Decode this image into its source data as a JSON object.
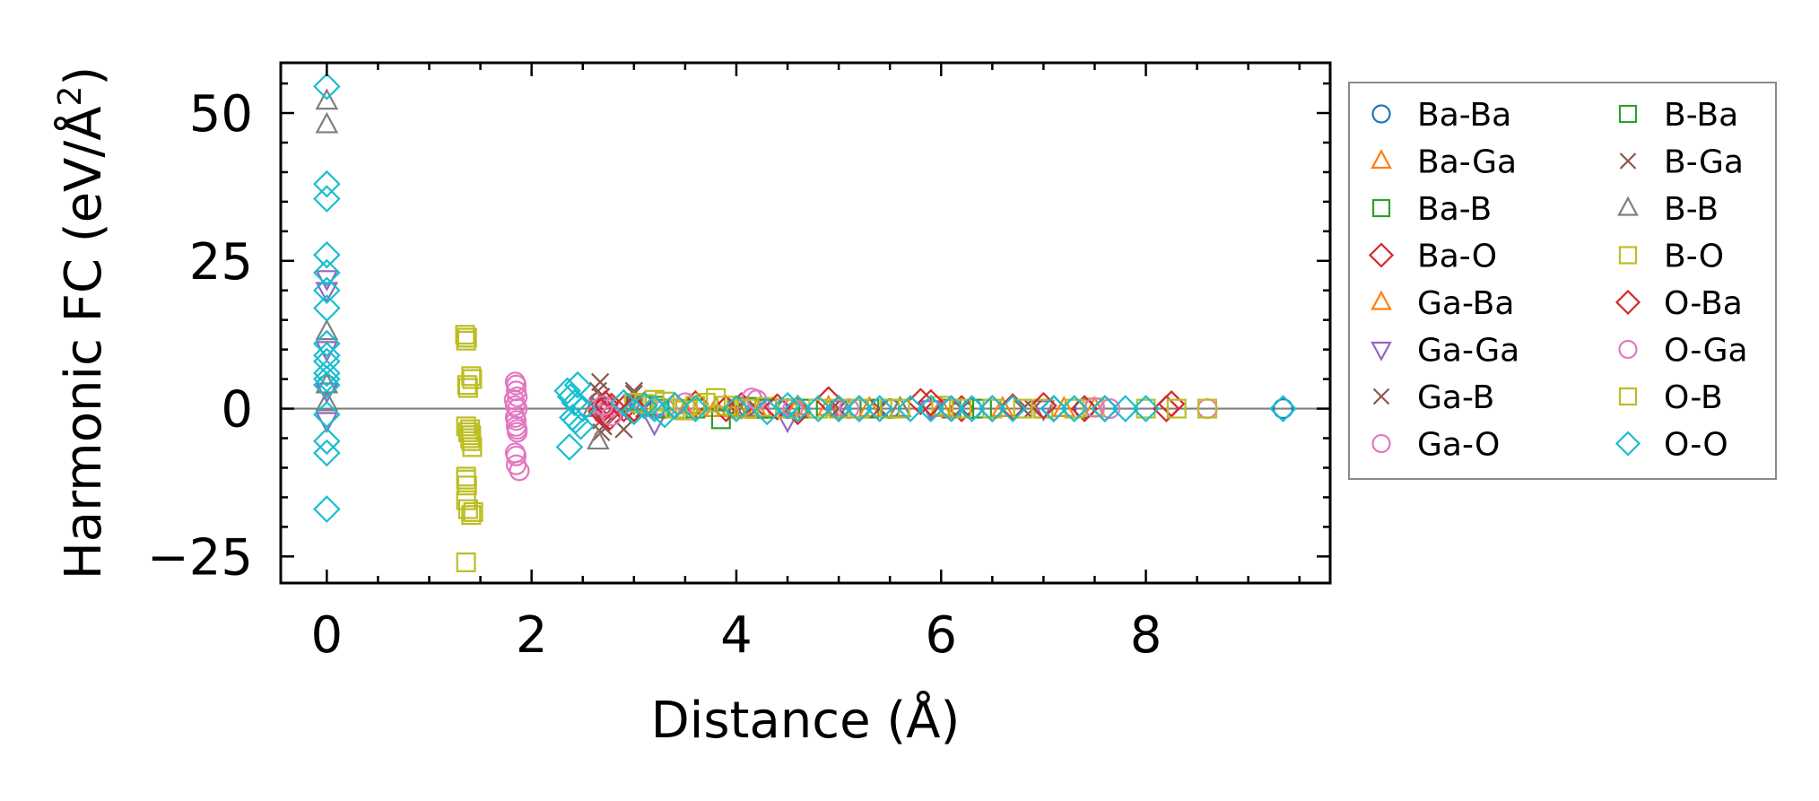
{
  "chart_data": {
    "type": "scatter",
    "xlabel": "Distance (Å)",
    "ylabel": "Harmonic FC (eV/Å²)",
    "ylabel_base": "Harmonic FC (eV/Å",
    "ylabel_sup": "2",
    "ylabel_close": ")",
    "xlim": [
      -0.45,
      9.8
    ],
    "ylim": [
      -29.5,
      58.5
    ],
    "xticks": [
      0,
      2,
      4,
      6,
      8
    ],
    "xtick_labels": [
      "0",
      "2",
      "4",
      "6",
      "8"
    ],
    "yticks": [
      -25,
      0,
      25,
      50
    ],
    "ytick_labels": [
      "−25",
      "0",
      "25",
      "50"
    ],
    "zero_line": 0,
    "grid": false,
    "legend_position": "outside-right",
    "series": [
      {
        "name": "Ba-Ba",
        "marker": "circle",
        "color": "#1f77b4",
        "points": [
          [
            0,
            4
          ],
          [
            4.5,
            0
          ],
          [
            5.5,
            0
          ],
          [
            6.3,
            0
          ],
          [
            7.4,
            0
          ],
          [
            9.34,
            0
          ]
        ]
      },
      {
        "name": "Ba-Ga",
        "marker": "triangle-up",
        "color": "#ff7f0e",
        "points": [
          [
            3.55,
            0.5
          ],
          [
            3.8,
            0
          ],
          [
            4.2,
            -0.3
          ],
          [
            4.9,
            0.2
          ],
          [
            5.6,
            0
          ],
          [
            6.6,
            0
          ],
          [
            7.5,
            0
          ]
        ]
      },
      {
        "name": "Ba-B",
        "marker": "square",
        "color": "#2ca02c",
        "points": [
          [
            3.2,
            0.5
          ],
          [
            3.6,
            0
          ],
          [
            4.1,
            0.3
          ],
          [
            4.7,
            0
          ],
          [
            5.3,
            0
          ],
          [
            6.1,
            0
          ],
          [
            7.0,
            0
          ]
        ]
      },
      {
        "name": "Ba-O",
        "marker": "diamond",
        "color": "#d62728",
        "points": [
          [
            2.68,
            0.3
          ],
          [
            2.72,
            -1
          ],
          [
            2.78,
            0.4
          ],
          [
            2.9,
            0
          ],
          [
            3.1,
            0.6
          ],
          [
            3.6,
            0.8
          ],
          [
            4.05,
            0.5
          ],
          [
            4.6,
            -0.5
          ],
          [
            4.9,
            1.5
          ],
          [
            5.2,
            0
          ],
          [
            5.8,
            1.2
          ],
          [
            6.2,
            0
          ],
          [
            6.7,
            0.3
          ],
          [
            7.1,
            0
          ],
          [
            7.6,
            0
          ],
          [
            8.25,
            0.8
          ]
        ]
      },
      {
        "name": "Ga-Ba",
        "marker": "triangle-up",
        "color": "#ff7f0e",
        "points": [
          [
            3.5,
            -0.5
          ],
          [
            4.0,
            0
          ],
          [
            4.6,
            0.3
          ],
          [
            5.3,
            0
          ],
          [
            6.0,
            0
          ],
          [
            7.2,
            0
          ]
        ]
      },
      {
        "name": "Ga-Ga",
        "marker": "triangle-down",
        "color": "#9467bd",
        "points": [
          [
            0,
            22
          ],
          [
            0,
            20
          ],
          [
            0,
            10
          ],
          [
            0,
            3
          ],
          [
            0,
            -2
          ],
          [
            3.2,
            -2.5
          ],
          [
            3.0,
            1
          ],
          [
            4.5,
            -2
          ],
          [
            5.0,
            0
          ],
          [
            5.9,
            0
          ],
          [
            7.0,
            0
          ]
        ]
      },
      {
        "name": "Ga-B",
        "marker": "x",
        "color": "#8c564b",
        "points": [
          [
            2.67,
            4.5
          ],
          [
            2.68,
            2
          ],
          [
            2.68,
            -2
          ],
          [
            2.68,
            -4
          ],
          [
            2.9,
            -1
          ],
          [
            3.0,
            2.5
          ],
          [
            3.1,
            0
          ],
          [
            4.0,
            0
          ],
          [
            5.0,
            0
          ],
          [
            6.2,
            0
          ],
          [
            6.9,
            0
          ]
        ]
      },
      {
        "name": "Ga-O",
        "marker": "circle",
        "color": "#e377c2",
        "points": [
          [
            1.84,
            4.5
          ],
          [
            1.85,
            3
          ],
          [
            1.83,
            1.5
          ],
          [
            1.86,
            0
          ],
          [
            1.84,
            -1.5
          ],
          [
            1.85,
            -3
          ],
          [
            1.86,
            -4
          ],
          [
            1.84,
            -7.5
          ],
          [
            1.85,
            -9.5
          ],
          [
            1.88,
            -10.5
          ],
          [
            2.65,
            1
          ],
          [
            2.7,
            -1
          ],
          [
            2.75,
            0
          ],
          [
            3.3,
            0
          ],
          [
            3.5,
            1
          ],
          [
            4.15,
            1.8
          ],
          [
            4.4,
            0
          ],
          [
            5.1,
            0
          ],
          [
            7.65,
            0
          ],
          [
            8.6,
            0
          ]
        ]
      },
      {
        "name": "B-Ba",
        "marker": "square",
        "color": "#2ca02c",
        "points": [
          [
            3.25,
            0
          ],
          [
            3.85,
            -1.8
          ],
          [
            4.3,
            0
          ],
          [
            5.2,
            0
          ],
          [
            6.4,
            0
          ]
        ]
      },
      {
        "name": "B-Ga",
        "marker": "x",
        "color": "#8c564b",
        "points": [
          [
            2.65,
            3
          ],
          [
            2.7,
            -3
          ],
          [
            2.9,
            -3.5
          ],
          [
            3.0,
            3
          ],
          [
            3.1,
            0
          ],
          [
            4.2,
            0
          ],
          [
            5.4,
            0
          ],
          [
            6.8,
            0
          ]
        ]
      },
      {
        "name": "B-B",
        "marker": "triangle-up",
        "color": "#7f7f7f",
        "points": [
          [
            0,
            52
          ],
          [
            0,
            48
          ],
          [
            0,
            13
          ],
          [
            0,
            4
          ],
          [
            0,
            1
          ],
          [
            2.6,
            0
          ],
          [
            2.65,
            -5.5
          ],
          [
            3.0,
            1
          ],
          [
            4.1,
            0
          ],
          [
            5.6,
            0
          ]
        ]
      },
      {
        "name": "B-O",
        "marker": "square",
        "color": "#bcbd22",
        "points": [
          [
            1.35,
            12.5
          ],
          [
            1.36,
            11.5
          ],
          [
            1.42,
            5
          ],
          [
            1.38,
            3.5
          ],
          [
            1.36,
            -3
          ],
          [
            1.38,
            -4
          ],
          [
            1.41,
            -4.5
          ],
          [
            1.4,
            -5
          ],
          [
            1.42,
            -6.5
          ],
          [
            1.36,
            -11.5
          ],
          [
            1.37,
            -13
          ],
          [
            1.36,
            -15.5
          ],
          [
            1.38,
            -17
          ],
          [
            1.43,
            -17.5
          ],
          [
            1.36,
            -26
          ],
          [
            3.0,
            1
          ],
          [
            3.2,
            1.5
          ],
          [
            3.4,
            0
          ],
          [
            3.6,
            0.5
          ],
          [
            3.8,
            1.8
          ],
          [
            4.0,
            0
          ],
          [
            4.3,
            0.3
          ],
          [
            5.0,
            0
          ],
          [
            5.5,
            0
          ],
          [
            6.0,
            0.5
          ],
          [
            6.5,
            0
          ],
          [
            7.0,
            0
          ],
          [
            7.5,
            0.2
          ],
          [
            8.0,
            0
          ],
          [
            8.6,
            0
          ]
        ]
      },
      {
        "name": "O-Ba",
        "marker": "diamond",
        "color": "#d62728",
        "points": [
          [
            2.68,
            -0.5
          ],
          [
            2.72,
            0.8
          ],
          [
            2.76,
            -1.5
          ],
          [
            3.0,
            0
          ],
          [
            3.4,
            0.5
          ],
          [
            3.9,
            0
          ],
          [
            4.4,
            0.3
          ],
          [
            5.0,
            0
          ],
          [
            5.9,
            1
          ],
          [
            6.5,
            0
          ],
          [
            7.0,
            0.5
          ],
          [
            7.4,
            0
          ],
          [
            8.2,
            0
          ]
        ]
      },
      {
        "name": "O-Ga",
        "marker": "circle",
        "color": "#e377c2",
        "points": [
          [
            1.85,
            4
          ],
          [
            1.86,
            2
          ],
          [
            1.84,
            0.5
          ],
          [
            1.85,
            -2
          ],
          [
            1.86,
            -3.5
          ],
          [
            1.85,
            -8
          ],
          [
            2.7,
            0.5
          ],
          [
            2.78,
            -1.2
          ],
          [
            3.2,
            0
          ],
          [
            4.2,
            1.5
          ],
          [
            4.55,
            0
          ],
          [
            5.2,
            0
          ],
          [
            6.1,
            0
          ],
          [
            7.5,
            0.2
          ]
        ]
      },
      {
        "name": "O-B",
        "marker": "square",
        "color": "#bcbd22",
        "points": [
          [
            1.37,
            12
          ],
          [
            1.41,
            5.5
          ],
          [
            1.37,
            4
          ],
          [
            1.4,
            -3.5
          ],
          [
            1.41,
            -5.5
          ],
          [
            1.36,
            -12
          ],
          [
            1.41,
            -18
          ],
          [
            3.1,
            0.8
          ],
          [
            3.3,
            1.2
          ],
          [
            3.5,
            -0.3
          ],
          [
            3.7,
            1
          ],
          [
            3.9,
            0.5
          ],
          [
            4.1,
            0
          ],
          [
            4.5,
            0
          ],
          [
            4.8,
            0
          ],
          [
            5.2,
            0
          ],
          [
            5.6,
            0
          ],
          [
            6.2,
            0
          ],
          [
            6.8,
            0
          ],
          [
            7.3,
            0
          ],
          [
            8.3,
            0
          ]
        ]
      },
      {
        "name": "O-O",
        "marker": "diamond",
        "color": "#17becf",
        "points": [
          [
            0,
            54.5
          ],
          [
            0,
            38
          ],
          [
            0,
            35.5
          ],
          [
            0,
            26
          ],
          [
            0,
            23
          ],
          [
            0,
            20
          ],
          [
            0,
            17
          ],
          [
            0,
            11
          ],
          [
            0,
            9
          ],
          [
            0,
            8
          ],
          [
            0,
            6
          ],
          [
            0,
            5
          ],
          [
            0,
            4
          ],
          [
            0,
            -1
          ],
          [
            0,
            -5.5
          ],
          [
            0,
            -7.5
          ],
          [
            0,
            -17
          ],
          [
            2.35,
            3
          ],
          [
            2.38,
            2
          ],
          [
            2.42,
            1
          ],
          [
            2.45,
            4
          ],
          [
            2.4,
            -1.5
          ],
          [
            2.48,
            -3
          ],
          [
            2.37,
            -6.5
          ],
          [
            2.43,
            -2
          ],
          [
            2.5,
            0
          ],
          [
            2.9,
            1
          ],
          [
            3.0,
            -0.5
          ],
          [
            3.1,
            0.5
          ],
          [
            3.2,
            0
          ],
          [
            3.3,
            -1
          ],
          [
            3.4,
            0.5
          ],
          [
            3.6,
            0
          ],
          [
            4.0,
            0
          ],
          [
            4.3,
            -0.5
          ],
          [
            4.5,
            0.5
          ],
          [
            4.6,
            0
          ],
          [
            4.8,
            0
          ],
          [
            5.0,
            0
          ],
          [
            5.2,
            0
          ],
          [
            5.4,
            0
          ],
          [
            5.7,
            0
          ],
          [
            5.9,
            0
          ],
          [
            6.1,
            0
          ],
          [
            6.3,
            0
          ],
          [
            6.5,
            0
          ],
          [
            6.7,
            0
          ],
          [
            7.1,
            0
          ],
          [
            7.3,
            0
          ],
          [
            7.6,
            0
          ],
          [
            7.8,
            0
          ],
          [
            8.0,
            0
          ],
          [
            9.34,
            0
          ]
        ]
      }
    ]
  }
}
